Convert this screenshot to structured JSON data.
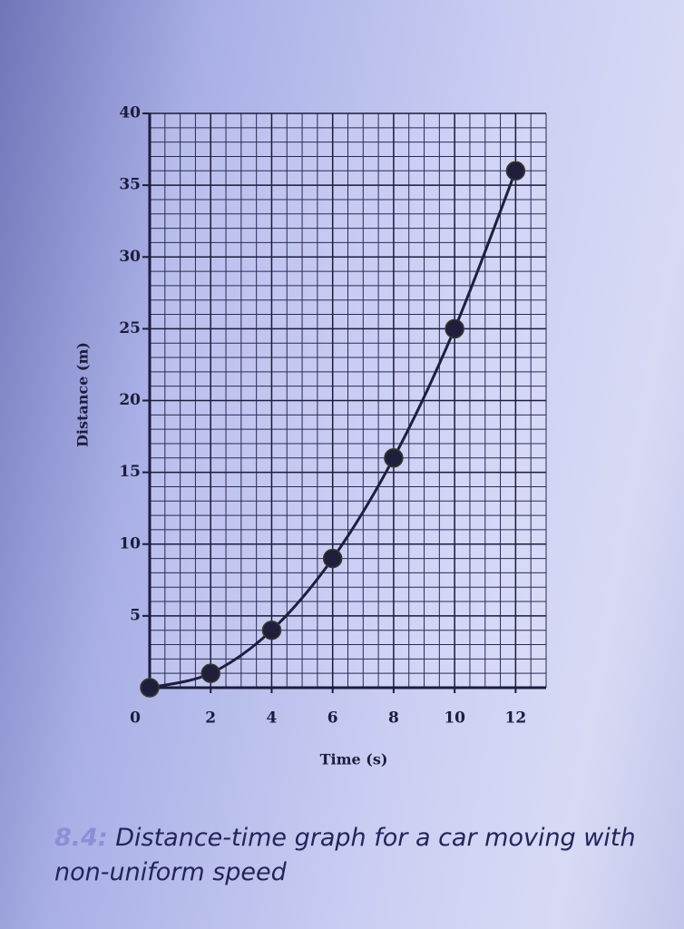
{
  "chart_data": {
    "type": "line",
    "xlabel": "Time (s)",
    "ylabel": "Distance (m)",
    "x": [
      0,
      2,
      4,
      6,
      8,
      10,
      12
    ],
    "series": [
      {
        "name": "Distance",
        "color": "#1f1f3d",
        "values": [
          0,
          1,
          4,
          9,
          16,
          25,
          36
        ]
      }
    ],
    "xlim": [
      0,
      13
    ],
    "ylim": [
      0,
      40
    ],
    "xticks": [
      0,
      2,
      4,
      6,
      8,
      10,
      12
    ],
    "yticks": [
      5,
      10,
      15,
      20,
      25,
      30,
      35,
      40
    ],
    "grid": true,
    "caption_number": "8.4:",
    "caption": "Distance-time graph for a car moving with non-uniform speed"
  }
}
